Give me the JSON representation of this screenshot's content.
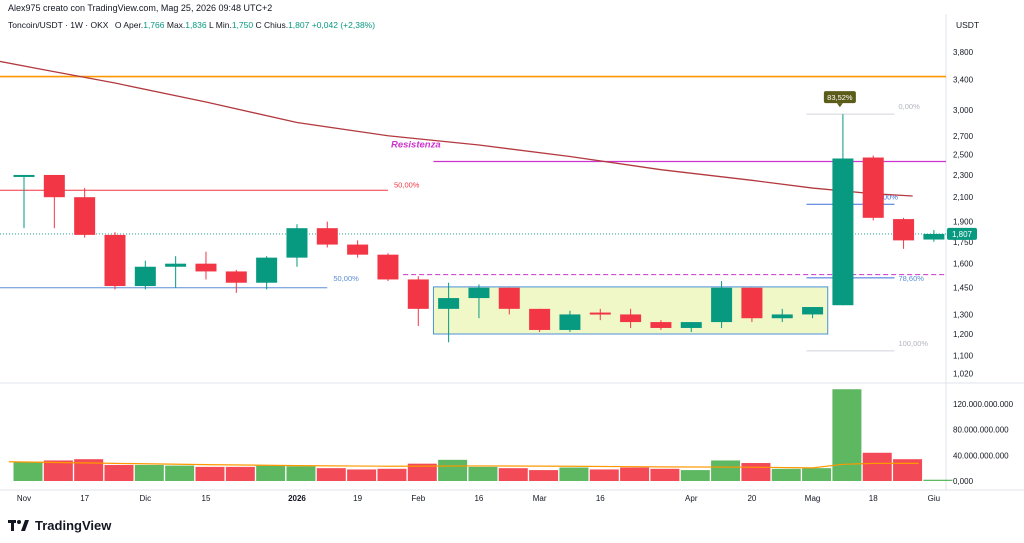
{
  "header": {
    "author_line": "Alex975 creato con TradingView.com, Mag 25, 2026 09:48 UTC+2",
    "symbol": "Toncoin/USDT · 1W · OKX",
    "o_label": "O",
    "o_name": "Aper.",
    "o_value": "1,766",
    "h_name": "Max.",
    "h_value": "1,836",
    "l_name": "L",
    "l_label2": "Min.",
    "l_value": "1,750",
    "c_label": "C",
    "c_name": "Chius.",
    "c_value": "1,807",
    "change": "+0,042 (+2,38%)",
    "unit": "USDT"
  },
  "footer": {
    "brand": "TradingView"
  },
  "colors": {
    "up": "#089981",
    "down": "#f23645",
    "vol_up": "#4caf50",
    "vol_down": "#f23645",
    "ma": "#b2393f",
    "orange": "#ff9800",
    "magenta": "#cc33cc",
    "blue_line": "#5b8dd6",
    "box_fill": "#f0f8c8",
    "box_border": "#4a90d9"
  },
  "chart_data": {
    "type": "candlestick",
    "price_axis": {
      "ticks": [
        1.02,
        1.1,
        1.2,
        1.3,
        1.45,
        1.6,
        1.75,
        1.9,
        2.1,
        2.3,
        2.5,
        2.7,
        3.0,
        3.4,
        3.8
      ],
      "tick_labels": [
        "1,020",
        "1,100",
        "1,200",
        "1,300",
        "1,450",
        "1,600",
        "1,750",
        "1,900",
        "2,100",
        "2,300",
        "2,500",
        "2,700",
        "3,000",
        "3,400",
        "3,800"
      ],
      "scale": "log"
    },
    "volume_axis": {
      "ticks": [
        0,
        40000000000,
        80000000000,
        120000000000
      ],
      "tick_labels": [
        "0,000",
        "40.000.000.000",
        "80.000.000.000",
        "120.000.000.000"
      ]
    },
    "time_axis": {
      "labels": [
        {
          "text": "Nov",
          "week": 0,
          "bold": false
        },
        {
          "text": "17",
          "week": 2,
          "bold": false
        },
        {
          "text": "Dic",
          "week": 4,
          "bold": false
        },
        {
          "text": "15",
          "week": 6,
          "bold": false
        },
        {
          "text": "2026",
          "week": 9,
          "bold": true
        },
        {
          "text": "19",
          "week": 11,
          "bold": false
        },
        {
          "text": "Feb",
          "week": 13,
          "bold": false
        },
        {
          "text": "16",
          "week": 15,
          "bold": false
        },
        {
          "text": "Mar",
          "week": 17,
          "bold": false
        },
        {
          "text": "16",
          "week": 19,
          "bold": false
        },
        {
          "text": "Apr",
          "week": 22,
          "bold": false
        },
        {
          "text": "20",
          "week": 24,
          "bold": false
        },
        {
          "text": "Mag",
          "week": 26,
          "bold": false
        },
        {
          "text": "18",
          "week": 28,
          "bold": false
        },
        {
          "text": "Giu",
          "week": 30,
          "bold": false
        }
      ]
    },
    "candles": [
      {
        "o": 2.3,
        "h": 2.3,
        "l": 1.85,
        "c": 2.3,
        "v": 30000000000
      },
      {
        "o": 2.3,
        "h": 2.3,
        "l": 1.85,
        "c": 2.1,
        "v": 32000000000
      },
      {
        "o": 2.1,
        "h": 2.18,
        "l": 1.78,
        "c": 1.8,
        "v": 34000000000
      },
      {
        "o": 1.8,
        "h": 1.82,
        "l": 1.44,
        "c": 1.46,
        "v": 25000000000
      },
      {
        "o": 1.46,
        "h": 1.62,
        "l": 1.44,
        "c": 1.58,
        "v": 25000000000
      },
      {
        "o": 1.58,
        "h": 1.65,
        "l": 1.45,
        "c": 1.6,
        "v": 24000000000
      },
      {
        "o": 1.6,
        "h": 1.68,
        "l": 1.5,
        "c": 1.55,
        "v": 22000000000
      },
      {
        "o": 1.55,
        "h": 1.56,
        "l": 1.42,
        "c": 1.48,
        "v": 22000000000
      },
      {
        "o": 1.48,
        "h": 1.65,
        "l": 1.44,
        "c": 1.64,
        "v": 24000000000
      },
      {
        "o": 1.64,
        "h": 1.88,
        "l": 1.58,
        "c": 1.85,
        "v": 23000000000
      },
      {
        "o": 1.85,
        "h": 1.9,
        "l": 1.71,
        "c": 1.73,
        "v": 20000000000
      },
      {
        "o": 1.73,
        "h": 1.76,
        "l": 1.64,
        "c": 1.66,
        "v": 18000000000
      },
      {
        "o": 1.66,
        "h": 1.67,
        "l": 1.49,
        "c": 1.5,
        "v": 19000000000
      },
      {
        "o": 1.5,
        "h": 1.52,
        "l": 1.24,
        "c": 1.33,
        "v": 27000000000
      },
      {
        "o": 1.33,
        "h": 1.48,
        "l": 1.16,
        "c": 1.39,
        "v": 33000000000
      },
      {
        "o": 1.39,
        "h": 1.47,
        "l": 1.28,
        "c": 1.45,
        "v": 22000000000
      },
      {
        "o": 1.45,
        "h": 1.45,
        "l": 1.3,
        "c": 1.33,
        "v": 20000000000
      },
      {
        "o": 1.33,
        "h": 1.33,
        "l": 1.21,
        "c": 1.22,
        "v": 17000000000
      },
      {
        "o": 1.22,
        "h": 1.32,
        "l": 1.21,
        "c": 1.3,
        "v": 21000000000
      },
      {
        "o": 1.31,
        "h": 1.33,
        "l": 1.27,
        "c": 1.3,
        "v": 18000000000
      },
      {
        "o": 1.3,
        "h": 1.33,
        "l": 1.23,
        "c": 1.26,
        "v": 21000000000
      },
      {
        "o": 1.26,
        "h": 1.27,
        "l": 1.22,
        "c": 1.23,
        "v": 19000000000
      },
      {
        "o": 1.23,
        "h": 1.26,
        "l": 1.21,
        "c": 1.26,
        "v": 17000000000
      },
      {
        "o": 1.26,
        "h": 1.49,
        "l": 1.23,
        "c": 1.45,
        "v": 32000000000
      },
      {
        "o": 1.45,
        "h": 1.45,
        "l": 1.26,
        "c": 1.28,
        "v": 28000000000
      },
      {
        "o": 1.28,
        "h": 1.33,
        "l": 1.26,
        "c": 1.3,
        "v": 19000000000
      },
      {
        "o": 1.3,
        "h": 1.34,
        "l": 1.28,
        "c": 1.34,
        "v": 20000000000
      },
      {
        "o": 1.35,
        "h": 2.95,
        "l": 1.35,
        "c": 2.46,
        "v": 143000000000
      },
      {
        "o": 2.47,
        "h": 2.49,
        "l": 1.91,
        "c": 1.93,
        "v": 44000000000
      },
      {
        "o": 1.92,
        "h": 1.93,
        "l": 1.7,
        "c": 1.76,
        "v": 34000000000
      },
      {
        "o": 1.766,
        "h": 1.836,
        "l": 1.75,
        "c": 1.807,
        "v": 2000000000
      }
    ],
    "ma_line": [
      [
        -1.5,
        3.72
      ],
      [
        0.5,
        3.55
      ],
      [
        3,
        3.35
      ],
      [
        6,
        3.1
      ],
      [
        9,
        2.85
      ],
      [
        12,
        2.7
      ],
      [
        15,
        2.6
      ],
      [
        18,
        2.48
      ],
      [
        21,
        2.35
      ],
      [
        24,
        2.25
      ],
      [
        26,
        2.18
      ],
      [
        28,
        2.13
      ],
      [
        29.3,
        2.11
      ]
    ],
    "vol_ma_line": [
      [
        -0.5,
        30000000000
      ],
      [
        3,
        27500000000
      ],
      [
        6,
        25500000000
      ],
      [
        9,
        24000000000
      ],
      [
        12,
        23000000000
      ],
      [
        15,
        23500000000
      ],
      [
        18,
        23000000000
      ],
      [
        21,
        22000000000
      ],
      [
        24,
        21500000000
      ],
      [
        26,
        20500000000
      ],
      [
        27,
        26000000000
      ],
      [
        28,
        27500000000
      ],
      [
        29.5,
        27500000000
      ]
    ],
    "annotations": {
      "orange_level": 3.44,
      "resistance_label": "Resistenza",
      "resistance_level": 2.43,
      "red_fib_50_label": "50,00%",
      "red_fib_50_level": 2.16,
      "left_support_level": 1.45,
      "left_fib_50_label": "50,00%",
      "left_fib_50_level": 1.497,
      "dashed_magenta_level": 1.53,
      "box": {
        "top": 1.455,
        "bottom": 1.2,
        "start_week": 13.5,
        "end_week": 26.5
      },
      "peak_badge": "83,52%",
      "fib_0_label": "0,00%",
      "fib_0_level": 2.95,
      "fib_50_label": "50,00%",
      "fib_50_level": 2.04,
      "fib_786_label": "78,60%",
      "fib_786_level": 1.51,
      "fib_100_label": "100,00%",
      "fib_100_level": 1.12,
      "current_price_label": "1,807",
      "current_price": 1.807
    }
  }
}
